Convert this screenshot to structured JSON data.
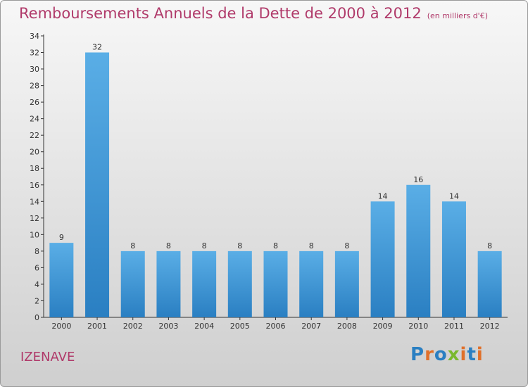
{
  "header": {
    "title": "Remboursements Annuels de la Dette de 2000 à 2012",
    "subtitle": "(en milliers d'€)"
  },
  "footer": {
    "commune": "IZENAVE",
    "logo": "Proxiti"
  },
  "colors": {
    "title": "#b03a6a",
    "bar_top": "#5aaee6",
    "bar_bottom": "#2a7fc2",
    "logo_letters": [
      "#2a7fc2",
      "#e0702a",
      "#2a7fc2",
      "#7ab82e",
      "#e0702a",
      "#2a7fc2",
      "#e0702a"
    ]
  },
  "chart_data": {
    "type": "bar",
    "title": "Remboursements Annuels de la Dette de 2000 à 2012",
    "subtitle": "(en milliers d'€)",
    "categories": [
      "2000",
      "2001",
      "2002",
      "2003",
      "2004",
      "2005",
      "2006",
      "2007",
      "2008",
      "2009",
      "2010",
      "2011",
      "2012"
    ],
    "values": [
      9,
      32,
      8,
      8,
      8,
      8,
      8,
      8,
      8,
      14,
      16,
      14,
      8
    ],
    "ylim": [
      0,
      34
    ],
    "yticks": [
      0,
      2,
      4,
      6,
      8,
      10,
      12,
      14,
      16,
      18,
      20,
      22,
      24,
      26,
      28,
      30,
      32,
      34
    ],
    "xlabel": "",
    "ylabel": "",
    "grid": false,
    "legend": "none"
  }
}
